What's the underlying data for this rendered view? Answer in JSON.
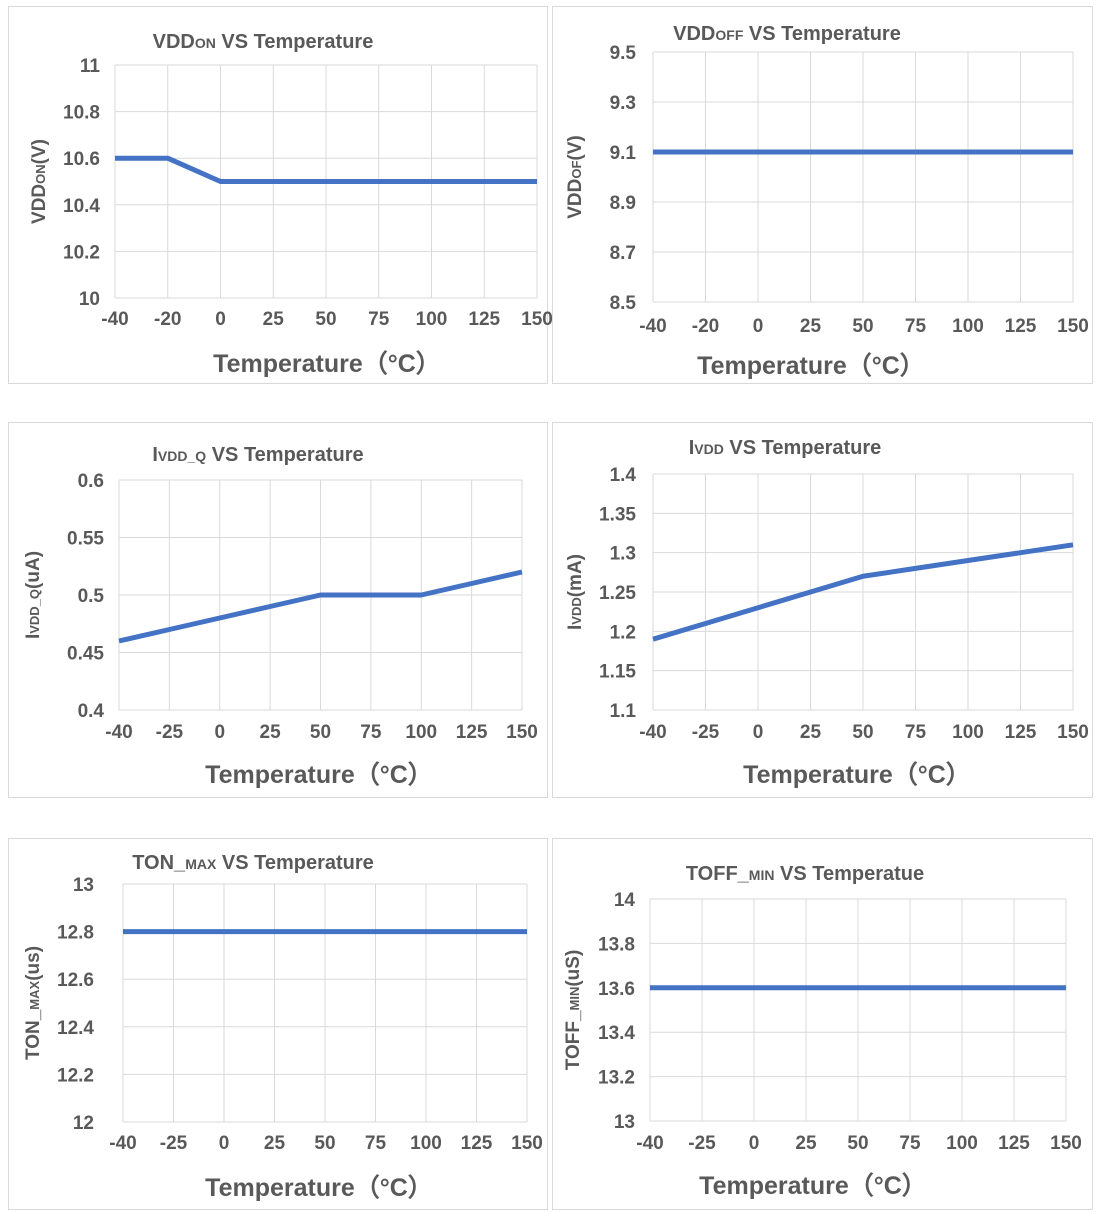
{
  "chart_data": [
    {
      "type": "line",
      "title": "VDDON VS Temperature",
      "title_parts": [
        {
          "text": "VDD",
          "small": false
        },
        {
          "text": "ON",
          "small": true
        },
        {
          "text": " VS Temperature",
          "small": false
        }
      ],
      "xlabel": "Temperature（°C）",
      "ylabel": "VDDON(V)",
      "ylabel_parts": [
        {
          "text": "VDD",
          "small": false
        },
        {
          "text": "ON",
          "small": true
        },
        {
          "text": "(V)",
          "small": false
        }
      ],
      "categories": [
        "-40",
        "-20",
        "0",
        "25",
        "50",
        "75",
        "100",
        "125",
        "150"
      ],
      "values": [
        10.6,
        10.6,
        10.5,
        10.5,
        10.5,
        10.5,
        10.5,
        10.5,
        10.5
      ],
      "yticks": [
        "10",
        "10.2",
        "10.4",
        "10.6",
        "10.8",
        "11"
      ],
      "ylim": [
        10,
        11
      ],
      "color": "#4472c4",
      "grid": true
    },
    {
      "type": "line",
      "title": "VDDOFF VS Temperature",
      "title_parts": [
        {
          "text": "VDD",
          "small": false
        },
        {
          "text": "OFF",
          "small": true
        },
        {
          "text": " VS Temperature",
          "small": false
        }
      ],
      "xlabel": "Temperature（°C）",
      "ylabel": "VDDOF(V)",
      "ylabel_parts": [
        {
          "text": "VDD",
          "small": false
        },
        {
          "text": "OF",
          "small": true
        },
        {
          "text": "(V)",
          "small": false
        }
      ],
      "categories": [
        "-40",
        "-20",
        "0",
        "25",
        "50",
        "75",
        "100",
        "125",
        "150"
      ],
      "values": [
        9.1,
        9.1,
        9.1,
        9.1,
        9.1,
        9.1,
        9.1,
        9.1,
        9.1
      ],
      "yticks": [
        "8.5",
        "8.7",
        "8.9",
        "9.1",
        "9.3",
        "9.5"
      ],
      "ylim": [
        8.5,
        9.5
      ],
      "color": "#4472c4",
      "grid": true
    },
    {
      "type": "line",
      "title": "IVDD_Q VS Temperature",
      "title_parts": [
        {
          "text": "I",
          "small": false
        },
        {
          "text": "VDD_Q",
          "small": true
        },
        {
          "text": " VS Temperature",
          "small": false
        }
      ],
      "xlabel": "Temperature（°C）",
      "ylabel": "IVDD_Q(uA)",
      "ylabel_parts": [
        {
          "text": "I",
          "small": false
        },
        {
          "text": "VDD_Q",
          "small": true
        },
        {
          "text": "(uA)",
          "small": false
        }
      ],
      "categories": [
        "-40",
        "-25",
        "0",
        "25",
        "50",
        "75",
        "100",
        "125",
        "150"
      ],
      "values": [
        0.46,
        0.47,
        0.48,
        0.49,
        0.5,
        0.5,
        0.5,
        0.51,
        0.52
      ],
      "yticks": [
        "0.4",
        "0.45",
        "0.5",
        "0.55",
        "0.6"
      ],
      "ylim": [
        0.4,
        0.6
      ],
      "color": "#4472c4",
      "grid": true
    },
    {
      "type": "line",
      "title": "IVDD VS Temperature",
      "title_parts": [
        {
          "text": "I",
          "small": false
        },
        {
          "text": "VDD",
          "small": true
        },
        {
          "text": " VS Temperature",
          "small": false
        }
      ],
      "xlabel": "Temperature（°C）",
      "ylabel": "IVDD(mA)",
      "ylabel_parts": [
        {
          "text": "I",
          "small": false
        },
        {
          "text": "VDD",
          "small": true
        },
        {
          "text": "(mA)",
          "small": false
        }
      ],
      "categories": [
        "-40",
        "-25",
        "0",
        "25",
        "50",
        "75",
        "100",
        "125",
        "150"
      ],
      "values": [
        1.19,
        1.21,
        1.23,
        1.25,
        1.27,
        1.28,
        1.29,
        1.3,
        1.31
      ],
      "yticks": [
        "1.1",
        "1.15",
        "1.2",
        "1.25",
        "1.3",
        "1.35",
        "1.4"
      ],
      "ylim": [
        1.1,
        1.4
      ],
      "color": "#4472c4",
      "grid": true
    },
    {
      "type": "line",
      "title": "TON_MAX VS Temperature",
      "title_parts": [
        {
          "text": "TON_",
          "small": false
        },
        {
          "text": "MAX",
          "small": true
        },
        {
          "text": " VS Temperature",
          "small": false
        }
      ],
      "xlabel": "Temperature（°C）",
      "ylabel": "TON_MAX(us)",
      "ylabel_parts": [
        {
          "text": "TON_",
          "small": false
        },
        {
          "text": "MAX",
          "small": true
        },
        {
          "text": "(us)",
          "small": false
        }
      ],
      "categories": [
        "-40",
        "-25",
        "0",
        "25",
        "50",
        "75",
        "100",
        "125",
        "150"
      ],
      "values": [
        12.8,
        12.8,
        12.8,
        12.8,
        12.8,
        12.8,
        12.8,
        12.8,
        12.8
      ],
      "yticks": [
        "12",
        "12.2",
        "12.4",
        "12.6",
        "12.8",
        "13"
      ],
      "ylim": [
        12,
        13
      ],
      "color": "#4472c4",
      "grid": true
    },
    {
      "type": "line",
      "title": "TOFF_MIN VS Temperatue",
      "title_parts": [
        {
          "text": "TOFF_",
          "small": false
        },
        {
          "text": "MIN",
          "small": true
        },
        {
          "text": " VS Temperatue",
          "small": false
        }
      ],
      "xlabel": "Temperature（°C）",
      "ylabel": "TOFF_MIN(uS)",
      "ylabel_parts": [
        {
          "text": "TOFF_",
          "small": false
        },
        {
          "text": "MIN",
          "small": true
        },
        {
          "text": "(uS)",
          "small": false
        }
      ],
      "categories": [
        "-40",
        "-25",
        "0",
        "25",
        "50",
        "75",
        "100",
        "125",
        "150"
      ],
      "values": [
        13.6,
        13.6,
        13.6,
        13.6,
        13.6,
        13.6,
        13.6,
        13.6,
        13.6
      ],
      "yticks": [
        "13",
        "13.2",
        "13.4",
        "13.6",
        "13.8",
        "14"
      ],
      "ylim": [
        13,
        14
      ],
      "color": "#4472c4",
      "grid": true
    }
  ]
}
